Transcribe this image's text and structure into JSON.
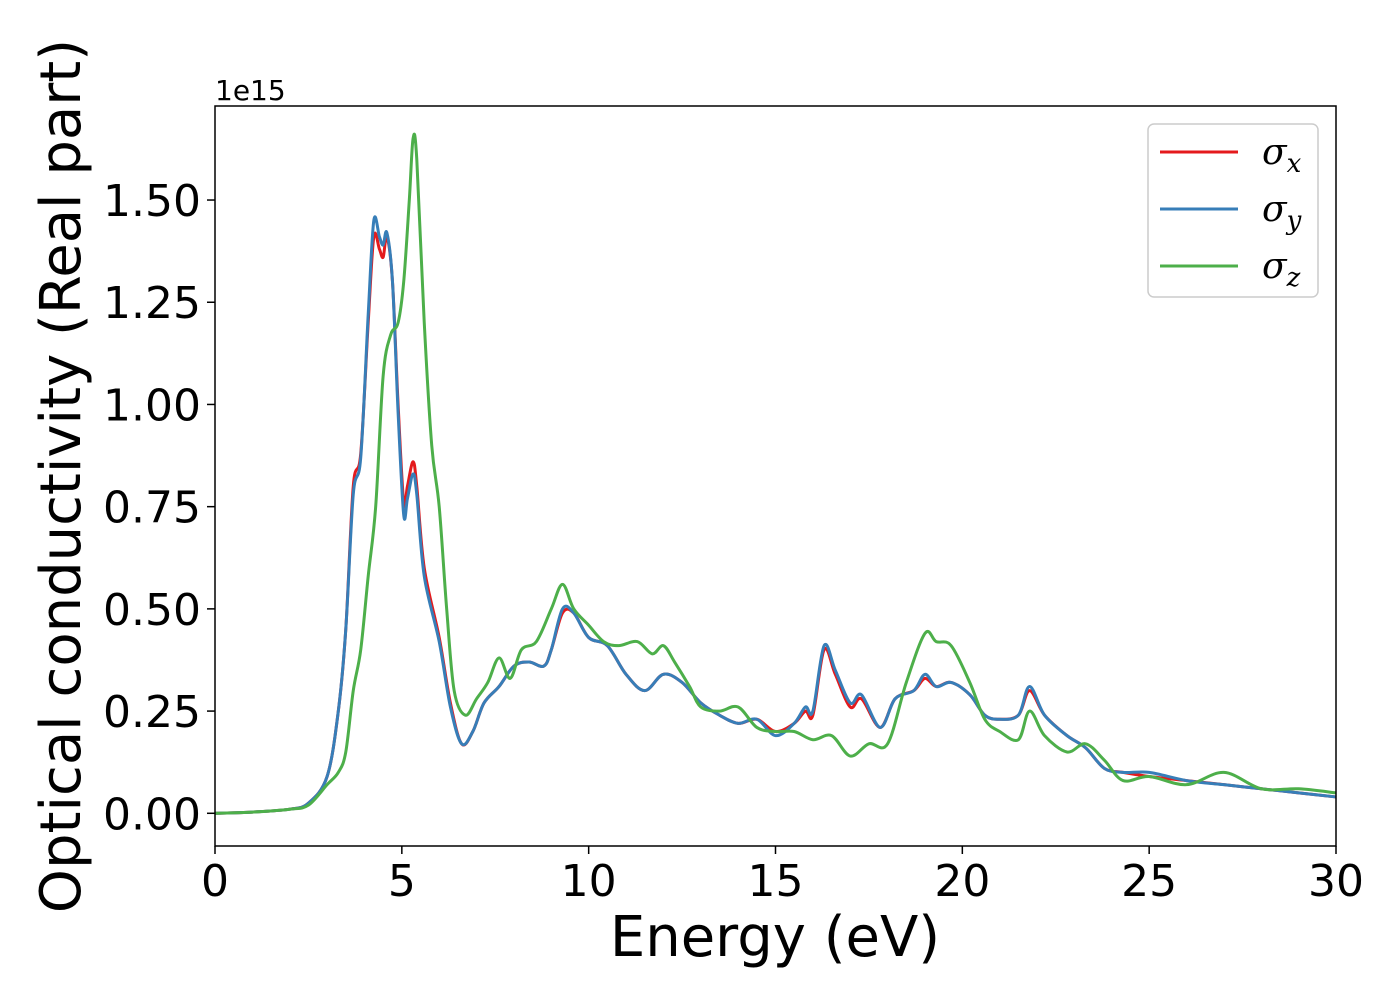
{
  "chart_data": {
    "type": "line",
    "xlabel": "Energy (eV)",
    "ylabel": "Optical conductivity (Real part)",
    "y_offset_text": "1e15",
    "xlim": [
      0,
      30
    ],
    "ylim": [
      -0.08,
      1.73
    ],
    "x_ticks": [
      0,
      5,
      10,
      15,
      20,
      25,
      30
    ],
    "x_tick_labels": [
      "0",
      "5",
      "10",
      "15",
      "20",
      "25",
      "30"
    ],
    "y_ticks": [
      0,
      0.25,
      0.5,
      0.75,
      1.0,
      1.25,
      1.5
    ],
    "y_tick_labels": [
      "0.00",
      "0.25",
      "0.50",
      "0.75",
      "1.00",
      "1.25",
      "1.50"
    ],
    "grid": false,
    "legend_position": "top-right",
    "series": [
      {
        "name": "σx",
        "legend_symbol": "σ",
        "legend_sub": "x",
        "color": "#e41a1c",
        "points": [
          [
            0,
            0
          ],
          [
            1,
            0.003
          ],
          [
            2,
            0.01
          ],
          [
            2.5,
            0.025
          ],
          [
            3,
            0.09
          ],
          [
            3.3,
            0.25
          ],
          [
            3.5,
            0.45
          ],
          [
            3.7,
            0.8
          ],
          [
            3.9,
            0.88
          ],
          [
            4.1,
            1.2
          ],
          [
            4.25,
            1.41
          ],
          [
            4.4,
            1.38
          ],
          [
            4.5,
            1.36
          ],
          [
            4.6,
            1.41
          ],
          [
            4.75,
            1.3
          ],
          [
            4.9,
            1.0
          ],
          [
            5.05,
            0.76
          ],
          [
            5.15,
            0.8
          ],
          [
            5.3,
            0.86
          ],
          [
            5.4,
            0.8
          ],
          [
            5.6,
            0.6
          ],
          [
            6.0,
            0.43
          ],
          [
            6.3,
            0.27
          ],
          [
            6.6,
            0.17
          ],
          [
            6.9,
            0.2
          ],
          [
            7.2,
            0.27
          ],
          [
            7.6,
            0.31
          ],
          [
            8.0,
            0.36
          ],
          [
            8.4,
            0.37
          ],
          [
            8.8,
            0.36
          ],
          [
            9.0,
            0.4
          ],
          [
            9.3,
            0.49
          ],
          [
            9.6,
            0.49
          ],
          [
            10.0,
            0.43
          ],
          [
            10.5,
            0.41
          ],
          [
            11.0,
            0.34
          ],
          [
            11.5,
            0.3
          ],
          [
            12.0,
            0.34
          ],
          [
            12.5,
            0.32
          ],
          [
            13.0,
            0.27
          ],
          [
            13.5,
            0.24
          ],
          [
            14.0,
            0.22
          ],
          [
            14.5,
            0.23
          ],
          [
            15.0,
            0.2
          ],
          [
            15.5,
            0.22
          ],
          [
            15.8,
            0.25
          ],
          [
            16.0,
            0.24
          ],
          [
            16.3,
            0.4
          ],
          [
            16.6,
            0.34
          ],
          [
            17.0,
            0.26
          ],
          [
            17.3,
            0.28
          ],
          [
            17.8,
            0.21
          ],
          [
            18.2,
            0.28
          ],
          [
            18.7,
            0.3
          ],
          [
            19.0,
            0.33
          ],
          [
            19.3,
            0.31
          ],
          [
            19.7,
            0.32
          ],
          [
            20.2,
            0.29
          ],
          [
            20.6,
            0.24
          ],
          [
            21.0,
            0.23
          ],
          [
            21.5,
            0.24
          ],
          [
            21.8,
            0.3
          ],
          [
            22.2,
            0.24
          ],
          [
            22.8,
            0.19
          ],
          [
            23.3,
            0.16
          ],
          [
            23.8,
            0.11
          ],
          [
            24.3,
            0.1
          ],
          [
            25.0,
            0.09
          ],
          [
            26.0,
            0.08
          ],
          [
            27.0,
            0.07
          ],
          [
            28.0,
            0.06
          ],
          [
            29.0,
            0.05
          ],
          [
            30.0,
            0.04
          ]
        ]
      },
      {
        "name": "σy",
        "legend_symbol": "σ",
        "legend_sub": "y",
        "color": "#377eb8",
        "points": [
          [
            0,
            0
          ],
          [
            1,
            0.003
          ],
          [
            2,
            0.01
          ],
          [
            2.5,
            0.025
          ],
          [
            3,
            0.09
          ],
          [
            3.3,
            0.25
          ],
          [
            3.5,
            0.45
          ],
          [
            3.7,
            0.78
          ],
          [
            3.9,
            0.87
          ],
          [
            4.1,
            1.22
          ],
          [
            4.25,
            1.45
          ],
          [
            4.4,
            1.41
          ],
          [
            4.5,
            1.39
          ],
          [
            4.6,
            1.42
          ],
          [
            4.75,
            1.3
          ],
          [
            4.9,
            0.98
          ],
          [
            5.05,
            0.73
          ],
          [
            5.15,
            0.77
          ],
          [
            5.3,
            0.83
          ],
          [
            5.4,
            0.78
          ],
          [
            5.6,
            0.58
          ],
          [
            6.0,
            0.42
          ],
          [
            6.3,
            0.26
          ],
          [
            6.6,
            0.17
          ],
          [
            6.9,
            0.2
          ],
          [
            7.2,
            0.27
          ],
          [
            7.6,
            0.31
          ],
          [
            8.0,
            0.36
          ],
          [
            8.4,
            0.37
          ],
          [
            8.8,
            0.36
          ],
          [
            9.0,
            0.4
          ],
          [
            9.3,
            0.5
          ],
          [
            9.6,
            0.49
          ],
          [
            10.0,
            0.43
          ],
          [
            10.5,
            0.41
          ],
          [
            11.0,
            0.34
          ],
          [
            11.5,
            0.3
          ],
          [
            12.0,
            0.34
          ],
          [
            12.5,
            0.32
          ],
          [
            13.0,
            0.27
          ],
          [
            13.5,
            0.24
          ],
          [
            14.0,
            0.22
          ],
          [
            14.5,
            0.23
          ],
          [
            15.0,
            0.19
          ],
          [
            15.5,
            0.22
          ],
          [
            15.8,
            0.26
          ],
          [
            16.0,
            0.25
          ],
          [
            16.3,
            0.41
          ],
          [
            16.6,
            0.35
          ],
          [
            17.0,
            0.27
          ],
          [
            17.3,
            0.29
          ],
          [
            17.8,
            0.21
          ],
          [
            18.2,
            0.28
          ],
          [
            18.7,
            0.3
          ],
          [
            19.0,
            0.34
          ],
          [
            19.3,
            0.31
          ],
          [
            19.7,
            0.32
          ],
          [
            20.2,
            0.29
          ],
          [
            20.6,
            0.24
          ],
          [
            21.0,
            0.23
          ],
          [
            21.5,
            0.24
          ],
          [
            21.8,
            0.31
          ],
          [
            22.2,
            0.24
          ],
          [
            22.8,
            0.19
          ],
          [
            23.3,
            0.16
          ],
          [
            23.8,
            0.11
          ],
          [
            24.3,
            0.1
          ],
          [
            25.0,
            0.1
          ],
          [
            26.0,
            0.08
          ],
          [
            27.0,
            0.07
          ],
          [
            28.0,
            0.06
          ],
          [
            29.0,
            0.05
          ],
          [
            30.0,
            0.04
          ]
        ]
      },
      {
        "name": "σz",
        "legend_symbol": "σ",
        "legend_sub": "z",
        "color": "#4daf4a",
        "points": [
          [
            0,
            0
          ],
          [
            1,
            0.003
          ],
          [
            2,
            0.01
          ],
          [
            2.5,
            0.02
          ],
          [
            3,
            0.07
          ],
          [
            3.3,
            0.1
          ],
          [
            3.5,
            0.15
          ],
          [
            3.7,
            0.3
          ],
          [
            3.9,
            0.4
          ],
          [
            4.1,
            0.58
          ],
          [
            4.3,
            0.75
          ],
          [
            4.5,
            1.07
          ],
          [
            4.7,
            1.17
          ],
          [
            4.9,
            1.2
          ],
          [
            5.05,
            1.3
          ],
          [
            5.2,
            1.5
          ],
          [
            5.3,
            1.65
          ],
          [
            5.4,
            1.6
          ],
          [
            5.6,
            1.2
          ],
          [
            5.8,
            0.9
          ],
          [
            6.0,
            0.75
          ],
          [
            6.2,
            0.5
          ],
          [
            6.4,
            0.3
          ],
          [
            6.7,
            0.24
          ],
          [
            7.0,
            0.28
          ],
          [
            7.3,
            0.32
          ],
          [
            7.6,
            0.38
          ],
          [
            7.9,
            0.33
          ],
          [
            8.2,
            0.4
          ],
          [
            8.6,
            0.42
          ],
          [
            9.0,
            0.5
          ],
          [
            9.3,
            0.56
          ],
          [
            9.6,
            0.5
          ],
          [
            10.0,
            0.46
          ],
          [
            10.4,
            0.42
          ],
          [
            10.8,
            0.41
          ],
          [
            11.3,
            0.42
          ],
          [
            11.7,
            0.39
          ],
          [
            12.0,
            0.41
          ],
          [
            12.3,
            0.37
          ],
          [
            12.7,
            0.31
          ],
          [
            13.0,
            0.26
          ],
          [
            13.5,
            0.25
          ],
          [
            14.0,
            0.26
          ],
          [
            14.5,
            0.21
          ],
          [
            15.0,
            0.2
          ],
          [
            15.5,
            0.2
          ],
          [
            16.0,
            0.18
          ],
          [
            16.5,
            0.19
          ],
          [
            17.0,
            0.14
          ],
          [
            17.5,
            0.17
          ],
          [
            18.0,
            0.17
          ],
          [
            18.5,
            0.32
          ],
          [
            19.0,
            0.44
          ],
          [
            19.3,
            0.42
          ],
          [
            19.7,
            0.41
          ],
          [
            20.2,
            0.32
          ],
          [
            20.6,
            0.23
          ],
          [
            21.0,
            0.2
          ],
          [
            21.5,
            0.18
          ],
          [
            21.8,
            0.25
          ],
          [
            22.2,
            0.19
          ],
          [
            22.8,
            0.15
          ],
          [
            23.3,
            0.17
          ],
          [
            23.8,
            0.13
          ],
          [
            24.3,
            0.08
          ],
          [
            25.0,
            0.09
          ],
          [
            26.0,
            0.07
          ],
          [
            27.0,
            0.1
          ],
          [
            28.0,
            0.06
          ],
          [
            29.0,
            0.06
          ],
          [
            30.0,
            0.05
          ]
        ]
      }
    ]
  }
}
